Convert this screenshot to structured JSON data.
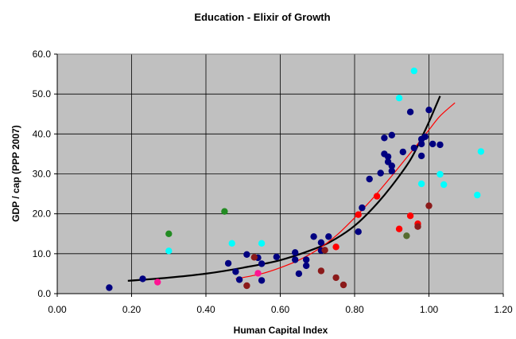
{
  "chart_data": {
    "type": "scatter",
    "title": "Education - Elixir of Growth",
    "xlabel": "Human Capital Index",
    "ylabel": "GDP / cap (PPP 2007)",
    "xlim": [
      0.0,
      1.2
    ],
    "ylim": [
      0.0,
      60.0
    ],
    "x_ticks": [
      "0.00",
      "0.20",
      "0.40",
      "0.60",
      "0.80",
      "1.00",
      "1.20"
    ],
    "y_ticks": [
      "0.0",
      "10.0",
      "20.0",
      "30.0",
      "40.0",
      "50.0",
      "60.0"
    ],
    "grid": true,
    "plot_background": "#c0c0c0",
    "legend": "none",
    "series": [
      {
        "color": "#000080",
        "points": [
          [
            0.14,
            1.5
          ],
          [
            0.23,
            3.7
          ],
          [
            0.46,
            7.6
          ],
          [
            0.48,
            5.5
          ],
          [
            0.49,
            3.5
          ],
          [
            0.51,
            9.8
          ],
          [
            0.54,
            9.0
          ],
          [
            0.55,
            7.5
          ],
          [
            0.55,
            3.3
          ],
          [
            0.59,
            9.2
          ],
          [
            0.64,
            10.3
          ],
          [
            0.64,
            8.5
          ],
          [
            0.65,
            5.0
          ],
          [
            0.67,
            7.0
          ],
          [
            0.67,
            8.5
          ],
          [
            0.69,
            14.3
          ],
          [
            0.71,
            10.8
          ],
          [
            0.71,
            12.8
          ],
          [
            0.73,
            14.3
          ],
          [
            0.81,
            15.5
          ],
          [
            0.82,
            21.5
          ],
          [
            0.84,
            28.7
          ],
          [
            0.87,
            30.2
          ],
          [
            0.88,
            35.0
          ],
          [
            0.88,
            39.0
          ],
          [
            0.89,
            33.0
          ],
          [
            0.89,
            34.3
          ],
          [
            0.9,
            32.0
          ],
          [
            0.9,
            30.7
          ],
          [
            0.9,
            39.7
          ],
          [
            0.93,
            35.5
          ],
          [
            0.95,
            45.5
          ],
          [
            0.96,
            36.5
          ],
          [
            0.98,
            34.5
          ],
          [
            0.98,
            37.5
          ],
          [
            0.98,
            38.7
          ],
          [
            0.99,
            39.3
          ],
          [
            1.0,
            46.0
          ],
          [
            1.01,
            37.5
          ],
          [
            1.03,
            37.3
          ]
        ]
      },
      {
        "color": "#00ffff",
        "points": [
          [
            0.3,
            10.7
          ],
          [
            0.47,
            12.6
          ],
          [
            0.55,
            12.6
          ],
          [
            0.92,
            49.0
          ],
          [
            0.96,
            55.8
          ],
          [
            0.98,
            27.5
          ],
          [
            1.03,
            29.9
          ],
          [
            1.04,
            27.3
          ],
          [
            1.13,
            24.7
          ],
          [
            1.14,
            35.6
          ]
        ]
      },
      {
        "color": "#ff0000",
        "points": [
          [
            0.75,
            11.7
          ],
          [
            0.81,
            19.8
          ],
          [
            0.86,
            24.4
          ],
          [
            0.92,
            16.2
          ],
          [
            0.95,
            19.5
          ],
          [
            0.97,
            17.5
          ]
        ]
      },
      {
        "color": "#8b1a1a",
        "points": [
          [
            0.51,
            2.0
          ],
          [
            0.53,
            9.1
          ],
          [
            0.71,
            5.7
          ],
          [
            0.72,
            10.9
          ],
          [
            0.75,
            4.0
          ],
          [
            0.77,
            2.2
          ],
          [
            0.97,
            16.8
          ],
          [
            1.0,
            22.0
          ]
        ]
      },
      {
        "color": "#ff1493",
        "points": [
          [
            0.27,
            2.9
          ],
          [
            0.54,
            5.1
          ]
        ]
      },
      {
        "color": "#228b22",
        "points": [
          [
            0.3,
            15.0
          ],
          [
            0.45,
            20.6
          ]
        ]
      },
      {
        "color": "#556b2f",
        "points": [
          [
            0.94,
            14.5
          ]
        ]
      }
    ],
    "trendlines": [
      {
        "color": "#000000",
        "points": [
          [
            0.19,
            3.2
          ],
          [
            0.3,
            4.0
          ],
          [
            0.4,
            5.0
          ],
          [
            0.5,
            6.5
          ],
          [
            0.6,
            8.4
          ],
          [
            0.7,
            11.5
          ],
          [
            0.75,
            13.8
          ],
          [
            0.8,
            17.0
          ],
          [
            0.85,
            21.5
          ],
          [
            0.9,
            27.0
          ],
          [
            0.95,
            33.5
          ],
          [
            0.98,
            39.0
          ],
          [
            1.0,
            43.0
          ],
          [
            1.03,
            49.5
          ]
        ]
      },
      {
        "color": "#ff0000",
        "points": [
          [
            0.48,
            3.7
          ],
          [
            0.55,
            5.0
          ],
          [
            0.6,
            6.5
          ],
          [
            0.65,
            8.4
          ],
          [
            0.7,
            11.0
          ],
          [
            0.75,
            14.5
          ],
          [
            0.8,
            19.0
          ],
          [
            0.85,
            24.0
          ],
          [
            0.9,
            29.5
          ],
          [
            0.95,
            35.2
          ],
          [
            1.0,
            41.0
          ],
          [
            1.03,
            44.5
          ],
          [
            1.07,
            47.8
          ]
        ]
      }
    ]
  }
}
